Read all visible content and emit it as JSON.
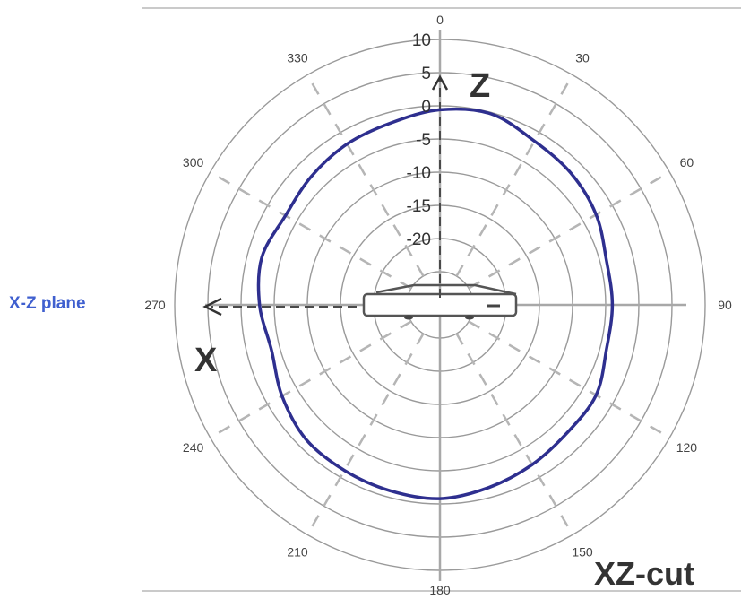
{
  "chart_data": {
    "type": "polar-line",
    "title": "XZ-cut",
    "plane_label": "X-Z plane",
    "axis_x_label": "X",
    "axis_z_label": "Z",
    "angle_ticks": [
      0,
      30,
      60,
      90,
      120,
      150,
      180,
      210,
      240,
      270,
      300,
      330
    ],
    "radial_ticks": [
      10,
      5,
      0,
      -5,
      -10,
      -15,
      -20
    ],
    "radial_range": [
      -30,
      10
    ],
    "grid": true,
    "series": [
      {
        "color": "#2e2f8f",
        "points": [
          {
            "angle": 0,
            "value": -0.6
          },
          {
            "angle": 15,
            "value": -0.2
          },
          {
            "angle": 30,
            "value": -1.5
          },
          {
            "angle": 45,
            "value": -2.0
          },
          {
            "angle": 60,
            "value": -2.8
          },
          {
            "angle": 75,
            "value": -4.0
          },
          {
            "angle": 90,
            "value": -4.0
          },
          {
            "angle": 105,
            "value": -4.0
          },
          {
            "angle": 120,
            "value": -2.8
          },
          {
            "angle": 135,
            "value": -2.8
          },
          {
            "angle": 150,
            "value": -2.2
          },
          {
            "angle": 165,
            "value": -1.5
          },
          {
            "angle": 180,
            "value": -0.8
          },
          {
            "angle": 195,
            "value": -1.0
          },
          {
            "angle": 210,
            "value": -1.2
          },
          {
            "angle": 225,
            "value": -1.4
          },
          {
            "angle": 240,
            "value": -2.5
          },
          {
            "angle": 255,
            "value": -3.7
          },
          {
            "angle": 270,
            "value": -2.8
          },
          {
            "angle": 285,
            "value": -2.2
          },
          {
            "angle": 300,
            "value": -3.1
          },
          {
            "angle": 315,
            "value": -2.6
          },
          {
            "angle": 330,
            "value": -2.0
          },
          {
            "angle": 345,
            "value": -1.6
          }
        ]
      }
    ]
  },
  "colors": {
    "pattern": "#2e2f8f",
    "plane_label": "#3f5fcf",
    "grid": "#9a9a9a",
    "spoke": "#b5b5b5"
  },
  "icons": [
    "device-icon"
  ]
}
